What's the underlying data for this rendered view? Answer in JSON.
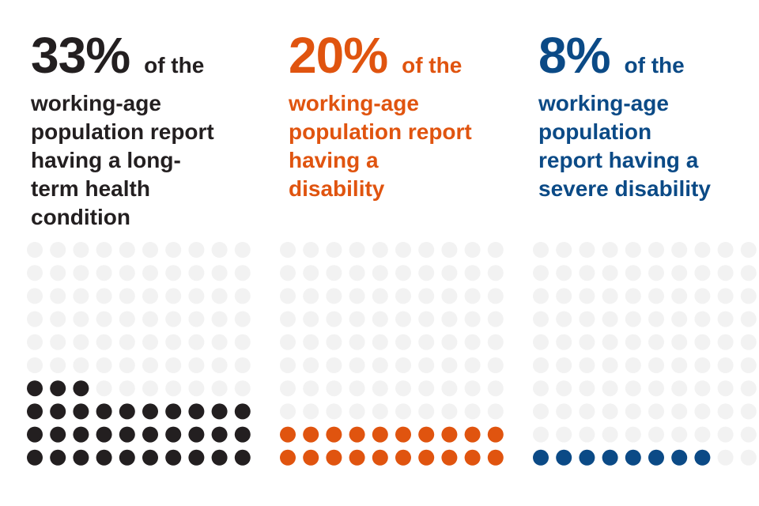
{
  "colors": {
    "empty_dot": "#f2f2f2",
    "background": "#ffffff"
  },
  "chart_data": [
    {
      "type": "waffle",
      "value": 33,
      "total": 100,
      "grid": {
        "rows": 10,
        "cols": 10
      },
      "fill_order": "bottom-up, left-to-right",
      "color": "#231f20",
      "headline_value": "33%",
      "headline_suffix": "of the",
      "description": "working-age\npopulation report\nhaving a long-\nterm health\ncondition"
    },
    {
      "type": "waffle",
      "value": 20,
      "total": 100,
      "grid": {
        "rows": 10,
        "cols": 10
      },
      "fill_order": "bottom-up, left-to-right",
      "color": "#e0540f",
      "headline_value": "20%",
      "headline_suffix": "of the",
      "description": "working-age\npopulation report\nhaving a\ndisability"
    },
    {
      "type": "waffle",
      "value": 8,
      "total": 100,
      "grid": {
        "rows": 10,
        "cols": 10
      },
      "fill_order": "bottom-up, left-to-right",
      "color": "#0b4a86",
      "headline_value": "8%",
      "headline_suffix": "of the",
      "description": "working-age\npopulation\nreport having a\nsevere disability"
    }
  ]
}
